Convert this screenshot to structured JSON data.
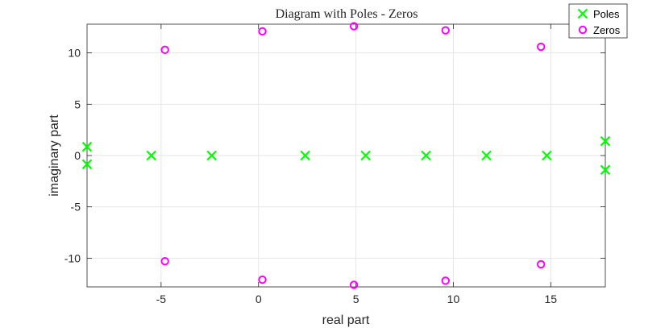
{
  "chart_data": {
    "type": "scatter",
    "title": "Diagram with Poles - Zeros",
    "xlabel": "real part",
    "ylabel": "imaginary part",
    "xlim": [
      -8.8,
      17.8
    ],
    "ylim": [
      -12.8,
      12.8
    ],
    "xticks": [
      -5,
      0,
      5,
      10,
      15
    ],
    "yticks": [
      -10,
      -5,
      0,
      5,
      10
    ],
    "grid": true,
    "legend_position": "top-right",
    "series": [
      {
        "name": "Poles",
        "marker": "x",
        "color": "#00ff00",
        "points": [
          [
            -8.8,
            0.85
          ],
          [
            -8.8,
            -0.85
          ],
          [
            -5.5,
            0
          ],
          [
            -2.4,
            0
          ],
          [
            2.4,
            0
          ],
          [
            5.5,
            0
          ],
          [
            8.6,
            0
          ],
          [
            11.7,
            0
          ],
          [
            14.8,
            0
          ],
          [
            17.8,
            1.4
          ],
          [
            17.8,
            -1.4
          ]
        ]
      },
      {
        "name": "Zeros",
        "marker": "o",
        "color": "#ff00ff",
        "points": [
          [
            -4.8,
            10.3
          ],
          [
            -4.8,
            -10.3
          ],
          [
            0.2,
            12.1
          ],
          [
            0.2,
            -12.1
          ],
          [
            4.9,
            12.6
          ],
          [
            4.9,
            -12.6
          ],
          [
            9.6,
            12.2
          ],
          [
            9.6,
            -12.2
          ],
          [
            14.5,
            10.6
          ],
          [
            14.5,
            -10.6
          ]
        ]
      }
    ]
  }
}
